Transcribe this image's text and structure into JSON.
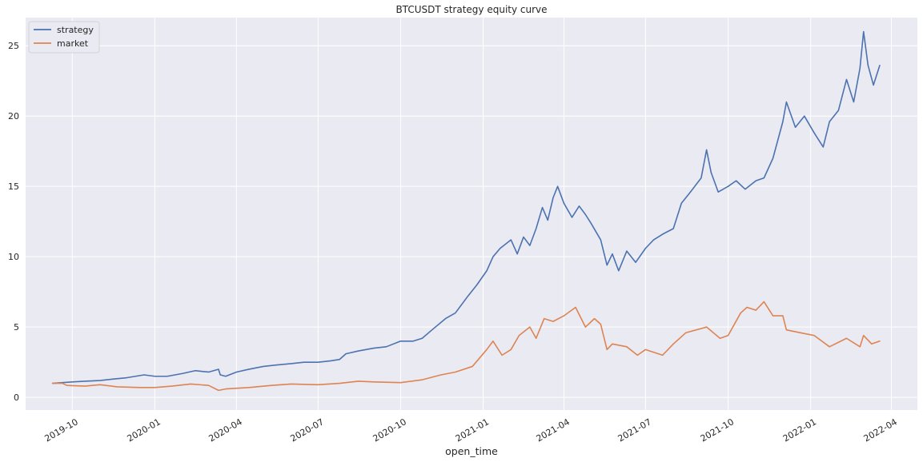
{
  "chart_data": {
    "type": "line",
    "title": "BTCUSDT strategy equity curve",
    "xlabel": "open_time",
    "ylabel": "",
    "x_range": [
      "2019-08-10",
      "2022-04-30"
    ],
    "ylim": [
      -0.9,
      27.0
    ],
    "yticks": [
      0,
      5,
      10,
      15,
      20,
      25
    ],
    "xticks": [
      {
        "date": "2019-10-01",
        "label": "2019-10"
      },
      {
        "date": "2020-01-01",
        "label": "2020-01"
      },
      {
        "date": "2020-04-01",
        "label": "2020-04"
      },
      {
        "date": "2020-07-01",
        "label": "2020-07"
      },
      {
        "date": "2020-10-01",
        "label": "2020-10"
      },
      {
        "date": "2021-01-01",
        "label": "2021-01"
      },
      {
        "date": "2021-04-01",
        "label": "2021-04"
      },
      {
        "date": "2021-07-01",
        "label": "2021-07"
      },
      {
        "date": "2021-10-01",
        "label": "2021-10"
      },
      {
        "date": "2022-01-01",
        "label": "2022-01"
      },
      {
        "date": "2022-04-01",
        "label": "2022-04"
      }
    ],
    "grid": true,
    "legend_position": "upper-left",
    "series": [
      {
        "name": "strategy",
        "color": "#4c72b0",
        "points": [
          [
            "2019-09-09",
            1.0
          ],
          [
            "2019-09-20",
            1.05
          ],
          [
            "2019-10-01",
            1.1
          ],
          [
            "2019-10-15",
            1.15
          ],
          [
            "2019-11-01",
            1.2
          ],
          [
            "2019-11-15",
            1.3
          ],
          [
            "2019-12-01",
            1.4
          ],
          [
            "2019-12-20",
            1.6
          ],
          [
            "2020-01-01",
            1.5
          ],
          [
            "2020-01-15",
            1.5
          ],
          [
            "2020-02-01",
            1.7
          ],
          [
            "2020-02-15",
            1.9
          ],
          [
            "2020-03-01",
            1.8
          ],
          [
            "2020-03-12",
            2.0
          ],
          [
            "2020-03-14",
            1.6
          ],
          [
            "2020-03-20",
            1.5
          ],
          [
            "2020-04-01",
            1.8
          ],
          [
            "2020-04-15",
            2.0
          ],
          [
            "2020-05-01",
            2.2
          ],
          [
            "2020-05-15",
            2.3
          ],
          [
            "2020-06-01",
            2.4
          ],
          [
            "2020-06-15",
            2.5
          ],
          [
            "2020-07-01",
            2.5
          ],
          [
            "2020-07-15",
            2.6
          ],
          [
            "2020-07-25",
            2.7
          ],
          [
            "2020-08-01",
            3.1
          ],
          [
            "2020-08-15",
            3.3
          ],
          [
            "2020-09-01",
            3.5
          ],
          [
            "2020-09-15",
            3.6
          ],
          [
            "2020-10-01",
            4.0
          ],
          [
            "2020-10-15",
            4.0
          ],
          [
            "2020-10-25",
            4.2
          ],
          [
            "2020-11-05",
            4.8
          ],
          [
            "2020-11-20",
            5.6
          ],
          [
            "2020-12-01",
            6.0
          ],
          [
            "2020-12-15",
            7.2
          ],
          [
            "2020-12-25",
            8.0
          ],
          [
            "2021-01-05",
            9.0
          ],
          [
            "2021-01-12",
            10.0
          ],
          [
            "2021-01-20",
            10.6
          ],
          [
            "2021-02-01",
            11.2
          ],
          [
            "2021-02-08",
            10.2
          ],
          [
            "2021-02-15",
            11.4
          ],
          [
            "2021-02-22",
            10.8
          ],
          [
            "2021-03-01",
            12.0
          ],
          [
            "2021-03-08",
            13.5
          ],
          [
            "2021-03-14",
            12.6
          ],
          [
            "2021-03-20",
            14.2
          ],
          [
            "2021-03-25",
            15.0
          ],
          [
            "2021-04-01",
            13.8
          ],
          [
            "2021-04-10",
            12.8
          ],
          [
            "2021-04-18",
            13.6
          ],
          [
            "2021-04-25",
            13.0
          ],
          [
            "2021-05-01",
            12.4
          ],
          [
            "2021-05-12",
            11.2
          ],
          [
            "2021-05-19",
            9.4
          ],
          [
            "2021-05-25",
            10.2
          ],
          [
            "2021-06-01",
            9.0
          ],
          [
            "2021-06-10",
            10.4
          ],
          [
            "2021-06-20",
            9.6
          ],
          [
            "2021-07-01",
            10.6
          ],
          [
            "2021-07-10",
            11.2
          ],
          [
            "2021-07-20",
            11.6
          ],
          [
            "2021-08-01",
            12.0
          ],
          [
            "2021-08-10",
            13.8
          ],
          [
            "2021-08-20",
            14.6
          ],
          [
            "2021-09-01",
            15.6
          ],
          [
            "2021-09-07",
            17.6
          ],
          [
            "2021-09-12",
            16.0
          ],
          [
            "2021-09-20",
            14.6
          ],
          [
            "2021-10-01",
            15.0
          ],
          [
            "2021-10-10",
            15.4
          ],
          [
            "2021-10-20",
            14.8
          ],
          [
            "2021-11-01",
            15.4
          ],
          [
            "2021-11-10",
            15.6
          ],
          [
            "2021-11-20",
            17.0
          ],
          [
            "2021-12-01",
            19.6
          ],
          [
            "2021-12-05",
            21.0
          ],
          [
            "2021-12-15",
            19.2
          ],
          [
            "2021-12-25",
            20.0
          ],
          [
            "2022-01-05",
            18.8
          ],
          [
            "2022-01-15",
            17.8
          ],
          [
            "2022-01-22",
            19.6
          ],
          [
            "2022-02-01",
            20.4
          ],
          [
            "2022-02-10",
            22.6
          ],
          [
            "2022-02-18",
            21.0
          ],
          [
            "2022-02-25",
            23.4
          ],
          [
            "2022-03-01",
            26.0
          ],
          [
            "2022-03-06",
            23.6
          ],
          [
            "2022-03-12",
            22.2
          ],
          [
            "2022-03-19",
            23.6
          ]
        ]
      },
      {
        "name": "market",
        "color": "#dd8452",
        "points": [
          [
            "2019-09-09",
            1.0
          ],
          [
            "2019-09-20",
            1.0
          ],
          [
            "2019-09-25",
            0.85
          ],
          [
            "2019-10-15",
            0.8
          ],
          [
            "2019-11-01",
            0.9
          ],
          [
            "2019-11-20",
            0.75
          ],
          [
            "2019-12-15",
            0.7
          ],
          [
            "2020-01-01",
            0.7
          ],
          [
            "2020-01-20",
            0.8
          ],
          [
            "2020-02-10",
            0.95
          ],
          [
            "2020-03-01",
            0.85
          ],
          [
            "2020-03-12",
            0.5
          ],
          [
            "2020-03-20",
            0.6
          ],
          [
            "2020-04-15",
            0.7
          ],
          [
            "2020-05-10",
            0.85
          ],
          [
            "2020-06-01",
            0.95
          ],
          [
            "2020-07-01",
            0.9
          ],
          [
            "2020-07-25",
            1.0
          ],
          [
            "2020-08-15",
            1.15
          ],
          [
            "2020-09-01",
            1.1
          ],
          [
            "2020-10-01",
            1.05
          ],
          [
            "2020-10-25",
            1.25
          ],
          [
            "2020-11-15",
            1.6
          ],
          [
            "2020-12-01",
            1.8
          ],
          [
            "2020-12-20",
            2.2
          ],
          [
            "2021-01-05",
            3.4
          ],
          [
            "2021-01-12",
            4.0
          ],
          [
            "2021-01-22",
            3.0
          ],
          [
            "2021-02-01",
            3.4
          ],
          [
            "2021-02-10",
            4.4
          ],
          [
            "2021-02-22",
            5.0
          ],
          [
            "2021-03-01",
            4.2
          ],
          [
            "2021-03-10",
            5.6
          ],
          [
            "2021-03-20",
            5.4
          ],
          [
            "2021-04-01",
            5.8
          ],
          [
            "2021-04-14",
            6.4
          ],
          [
            "2021-04-25",
            5.0
          ],
          [
            "2021-05-05",
            5.6
          ],
          [
            "2021-05-12",
            5.2
          ],
          [
            "2021-05-19",
            3.4
          ],
          [
            "2021-05-25",
            3.8
          ],
          [
            "2021-06-10",
            3.6
          ],
          [
            "2021-06-22",
            3.0
          ],
          [
            "2021-07-01",
            3.4
          ],
          [
            "2021-07-20",
            3.0
          ],
          [
            "2021-08-01",
            3.8
          ],
          [
            "2021-08-15",
            4.6
          ],
          [
            "2021-09-07",
            5.0
          ],
          [
            "2021-09-22",
            4.2
          ],
          [
            "2021-10-01",
            4.4
          ],
          [
            "2021-10-15",
            6.0
          ],
          [
            "2021-10-22",
            6.4
          ],
          [
            "2021-11-01",
            6.2
          ],
          [
            "2021-11-10",
            6.8
          ],
          [
            "2021-11-20",
            5.8
          ],
          [
            "2021-12-01",
            5.8
          ],
          [
            "2021-12-05",
            4.8
          ],
          [
            "2021-12-20",
            4.6
          ],
          [
            "2022-01-05",
            4.4
          ],
          [
            "2022-01-22",
            3.6
          ],
          [
            "2022-02-10",
            4.2
          ],
          [
            "2022-02-25",
            3.6
          ],
          [
            "2022-03-01",
            4.4
          ],
          [
            "2022-03-10",
            3.8
          ],
          [
            "2022-03-19",
            4.0
          ]
        ]
      }
    ]
  }
}
